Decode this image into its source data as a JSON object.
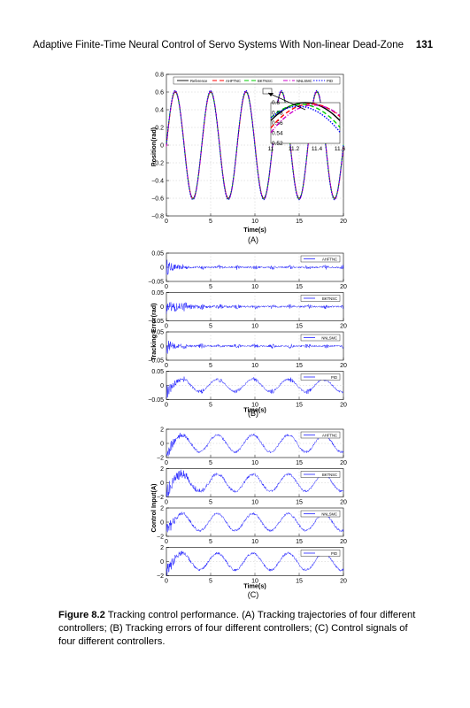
{
  "header": {
    "running_head": "Adaptive Finite-Time Neural Control of Servo Systems With Non-linear Dead-Zone",
    "page_number": "131"
  },
  "caption": {
    "label": "Figure 8.2",
    "text": "Tracking control performance. (A) Tracking trajectories of four different controllers; (B) Tracking errors of four different controllers; (C) Control signals of four different controllers."
  },
  "colors": {
    "reference": "#000000",
    "ahftnc": "#ff0000",
    "bktnsc": "#00cc00",
    "nnlsmc": "#cc00cc",
    "pid": "#0000ff",
    "signal": "#2020ff"
  },
  "chart_data": [
    {
      "panel": "(A)",
      "type": "line",
      "xlabel": "Time(s)",
      "ylabel": "Position(rad)",
      "xlim": [
        0,
        20
      ],
      "ylim": [
        -0.8,
        0.8
      ],
      "xticks": [
        "0",
        "5",
        "10",
        "15",
        "20"
      ],
      "yticks": [
        "0.8",
        "0.6",
        "0.4",
        "0.2",
        "0",
        "−0.2",
        "−0.4",
        "−0.6",
        "−0.8"
      ],
      "legend": [
        "Reference",
        "AHFTNC",
        "BKTNSC",
        "NNLSMC",
        "PID"
      ],
      "legend_position": "top",
      "grid": true,
      "signal": {
        "amplitude": 0.6,
        "frequency_hz": 0.25
      },
      "inset": {
        "xlim": [
          11,
          11.6
        ],
        "ylim": [
          0.52,
          0.6
        ],
        "xticks": [
          "11",
          "11.2",
          "11.4",
          "11.6"
        ],
        "yticks": [
          "0.6",
          "0.58",
          "0.56",
          "0.54",
          "0.52"
        ]
      }
    },
    {
      "panel": "(B)",
      "type": "line",
      "xlabel": "Time(s)",
      "ylabel": "Tracking Error(rad)",
      "xlim": [
        0,
        20
      ],
      "ylim": [
        -0.05,
        0.05
      ],
      "xticks": [
        "0",
        "5",
        "10",
        "15",
        "20"
      ],
      "yticks": [
        "0.05",
        "0",
        "−0.05"
      ],
      "grid": true,
      "series": [
        {
          "name": "AHFTNC"
        },
        {
          "name": "BKTNSC"
        },
        {
          "name": "NNLSMC"
        },
        {
          "name": "PID"
        }
      ]
    },
    {
      "panel": "(C)",
      "type": "line",
      "xlabel": "Time(s)",
      "ylabel": "Control Input(A)",
      "xlim": [
        0,
        20
      ],
      "ylim": [
        -2,
        2
      ],
      "xticks": [
        "0",
        "5",
        "10",
        "15",
        "20"
      ],
      "yticks": [
        "2",
        "0",
        "−2"
      ],
      "grid": true,
      "series": [
        {
          "name": "AHFTNC"
        },
        {
          "name": "BKTNSC"
        },
        {
          "name": "NNLSMC"
        },
        {
          "name": "PID"
        }
      ]
    }
  ]
}
